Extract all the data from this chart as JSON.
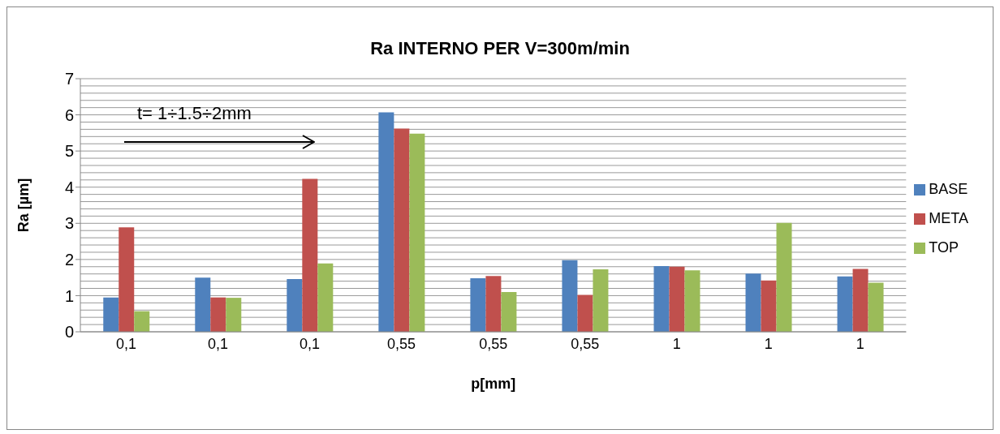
{
  "chart_data": {
    "type": "bar",
    "title": "Ra INTERNO PER V=300m/min",
    "xlabel": "p[mm]",
    "ylabel": "Ra [µm]",
    "categories": [
      "0,1",
      "0,1",
      "0,1",
      "0,55",
      "0,55",
      "0,55",
      "1",
      "1",
      "1"
    ],
    "series": [
      {
        "name": "BASE",
        "color": "#4f81bd",
        "values": [
          0.95,
          1.5,
          1.46,
          6.07,
          1.48,
          1.98,
          1.82,
          1.61,
          1.53
        ]
      },
      {
        "name": "META",
        "color": "#c0504d",
        "values": [
          2.89,
          0.95,
          4.23,
          5.62,
          1.54,
          1.02,
          1.8,
          1.42,
          1.74
        ]
      },
      {
        "name": "TOP",
        "color": "#9bbb59",
        "values": [
          0.57,
          0.94,
          1.89,
          5.48,
          1.1,
          1.73,
          1.7,
          3.01,
          1.36
        ]
      }
    ],
    "ylim": [
      0,
      7
    ],
    "yticks": [
      0,
      1,
      2,
      3,
      4,
      5,
      6,
      7
    ],
    "grid": "y",
    "legend": "right",
    "annotations": [
      "t= 1÷1.5÷2mm"
    ]
  }
}
